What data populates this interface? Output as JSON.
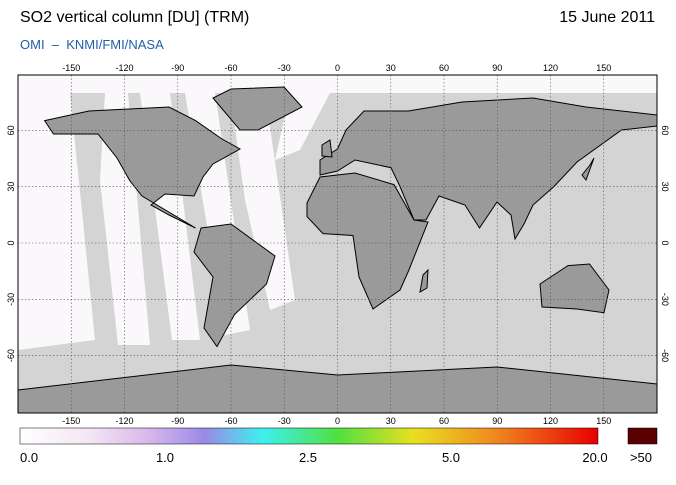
{
  "header": {
    "title": "SO2 vertical column [DU] (TRM)",
    "date": "15 June 2011",
    "source": "OMI  –  KNMI/FMI/NASA"
  },
  "map": {
    "lon_ticks": [
      -150,
      -120,
      -90,
      -60,
      -30,
      0,
      30,
      60,
      90,
      120,
      150
    ],
    "lat_ticks": [
      60,
      30,
      0,
      -30,
      -60
    ]
  },
  "colorbar": {
    "labels": [
      "0.0",
      "1.0",
      "2.5",
      "5.0",
      "20.0",
      ">50"
    ]
  }
}
